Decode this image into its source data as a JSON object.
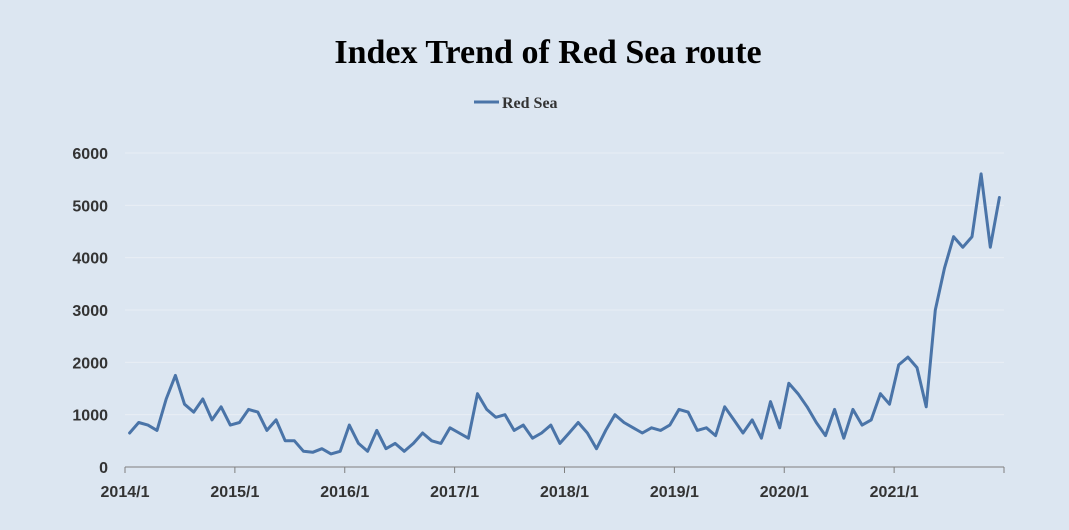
{
  "chart_data": {
    "type": "line",
    "title": "Index Trend of Red Sea route",
    "xlabel": "",
    "ylabel": "",
    "ylim": [
      0,
      6000
    ],
    "y_ticks": [
      0,
      1000,
      2000,
      3000,
      4000,
      5000,
      6000
    ],
    "x_ticks": [
      "2014/1",
      "2015/1",
      "2016/1",
      "2017/1",
      "2018/1",
      "2019/1",
      "2020/1",
      "2021/1"
    ],
    "x_range": [
      "2014/1",
      "2021/12"
    ],
    "grid": "horizontal",
    "legend_position": "top-center",
    "series": [
      {
        "name": "Red Sea",
        "color": "#4a74a8",
        "x": [
          "2014/1",
          "2014/2",
          "2014/3",
          "2014/4",
          "2014/5",
          "2014/6",
          "2014/7",
          "2014/8",
          "2014/9",
          "2014/10",
          "2014/11",
          "2014/12",
          "2015/1",
          "2015/2",
          "2015/3",
          "2015/4",
          "2015/5",
          "2015/6",
          "2015/7",
          "2015/8",
          "2015/9",
          "2015/10",
          "2015/11",
          "2015/12",
          "2016/1",
          "2016/2",
          "2016/3",
          "2016/4",
          "2016/5",
          "2016/6",
          "2016/7",
          "2016/8",
          "2016/9",
          "2016/10",
          "2016/11",
          "2016/12",
          "2017/1",
          "2017/2",
          "2017/3",
          "2017/4",
          "2017/5",
          "2017/6",
          "2017/7",
          "2017/8",
          "2017/9",
          "2017/10",
          "2017/11",
          "2017/12",
          "2018/1",
          "2018/2",
          "2018/3",
          "2018/4",
          "2018/5",
          "2018/6",
          "2018/7",
          "2018/8",
          "2018/9",
          "2018/10",
          "2018/11",
          "2018/12",
          "2019/1",
          "2019/2",
          "2019/3",
          "2019/4",
          "2019/5",
          "2019/6",
          "2019/7",
          "2019/8",
          "2019/9",
          "2019/10",
          "2019/11",
          "2019/12",
          "2020/1",
          "2020/2",
          "2020/3",
          "2020/4",
          "2020/5",
          "2020/6",
          "2020/7",
          "2020/8",
          "2020/9",
          "2020/10",
          "2020/11",
          "2020/12",
          "2021/1",
          "2021/2",
          "2021/3",
          "2021/4",
          "2021/5",
          "2021/6",
          "2021/7",
          "2021/8",
          "2021/9",
          "2021/10",
          "2021/11",
          "2021/12"
        ],
        "values": [
          650,
          850,
          800,
          700,
          1300,
          1750,
          1200,
          1050,
          1300,
          900,
          1150,
          800,
          850,
          1100,
          1050,
          700,
          900,
          500,
          500,
          300,
          280,
          350,
          250,
          300,
          800,
          450,
          300,
          700,
          350,
          450,
          300,
          450,
          650,
          500,
          450,
          750,
          650,
          550,
          1400,
          1100,
          950,
          1000,
          700,
          800,
          550,
          650,
          800,
          450,
          650,
          850,
          650,
          350,
          700,
          1000,
          850,
          750,
          650,
          750,
          700,
          800,
          1100,
          1050,
          700,
          750,
          600,
          1150,
          900,
          650,
          900,
          550,
          1250,
          750,
          1600,
          1400,
          1150,
          850,
          600,
          1100,
          550,
          1100,
          800,
          900,
          1400,
          1200,
          1950,
          2100,
          1900,
          1150,
          3000,
          3800,
          4400,
          4200,
          4400,
          5600,
          4200,
          5150
        ]
      }
    ]
  }
}
